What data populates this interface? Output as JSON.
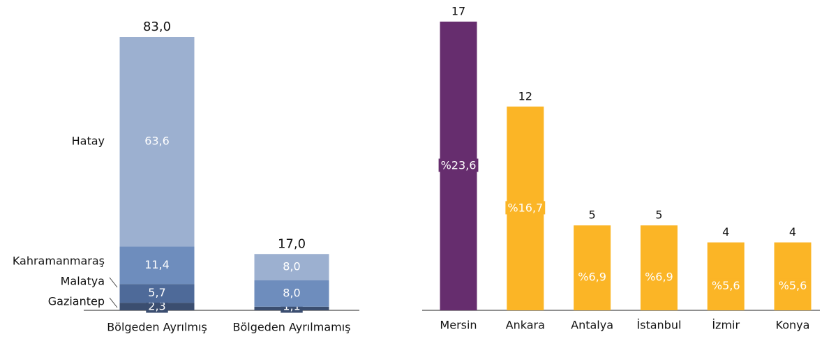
{
  "chart_data": [
    {
      "type": "stacked_bar",
      "categories": [
        "Bölgeden Ayrılmış",
        "Bölgeden Ayrılmamış"
      ],
      "series": [
        {
          "name": "Gaziantep",
          "color": "#3b4e70",
          "values": [
            2.3,
            1.1
          ],
          "value_labels": [
            "2,3",
            "1,1"
          ]
        },
        {
          "name": "Malatya",
          "color": "#4e6a99",
          "values": [
            5.7,
            null
          ],
          "value_labels": [
            "5,7",
            null
          ]
        },
        {
          "name": "Kahramanmaraş",
          "color": "#6e8dbd",
          "values": [
            11.4,
            8.0
          ],
          "value_labels": [
            "11,4",
            "8,0"
          ]
        },
        {
          "name": "Hatay",
          "color": "#9cb0d0",
          "values": [
            63.6,
            8.0
          ],
          "value_labels": [
            "63,6",
            "8,0"
          ]
        }
      ],
      "totals": [
        83.0,
        17.0
      ],
      "total_labels": [
        "83,0",
        "17,0"
      ],
      "ylim": [
        0,
        83
      ]
    },
    {
      "type": "bar",
      "categories": [
        "Mersin",
        "Ankara",
        "Antalya",
        "İstanbul",
        "İzmir",
        "Konya"
      ],
      "values": [
        17,
        12,
        5,
        5,
        4,
        4
      ],
      "colors": [
        "#662d6e",
        "#fbb526",
        "#fbb526",
        "#fbb526",
        "#fbb526",
        "#fbb526"
      ],
      "shares": [
        23.6,
        16.7,
        6.9,
        6.9,
        5.6,
        5.6
      ],
      "share_labels": [
        "%23,6",
        "%16,7",
        "%6,9",
        "%6,9",
        "%5,6",
        "%5,6"
      ],
      "ylim": [
        0,
        17
      ]
    }
  ]
}
